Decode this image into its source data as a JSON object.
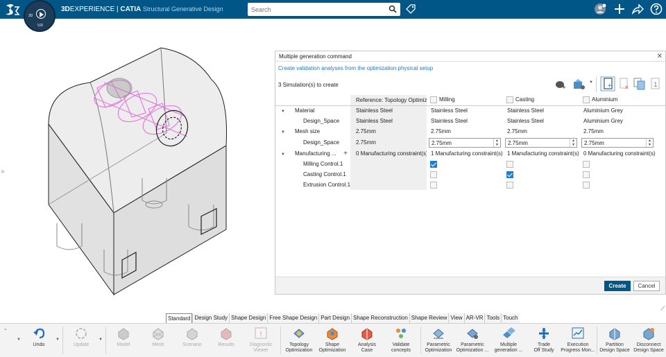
{
  "header": {
    "brand_bold": "3D",
    "brand_rest": "EXPERIENCE | ",
    "product": "CATIA",
    "app": "Structural Generative Design",
    "compass_3d": "3D",
    "compass_version": "V,R",
    "search_placeholder": "Search"
  },
  "dialog": {
    "title": "Multiple generation command",
    "link": "Create validation analyses from the optimization physical setup",
    "count": "3 Simulation(s) to create",
    "columns": {
      "reference": "Reference: Topology Optimiza...",
      "c1": "Milling",
      "c2": "Casting",
      "c3": "Aluminium"
    },
    "rows": {
      "material": "Material",
      "design_space": "Design_Space",
      "mesh_size": "Mesh size",
      "manufacturing": "Manufacturing ...",
      "milling": "Milling Control.1",
      "casting": "Casting Control.1",
      "extrusion": "Extrusion Control.1"
    },
    "values": {
      "ref_material": "Stainless Steel",
      "ref_ds": "Stainless Steel",
      "ref_mesh": "2.75mm",
      "ref_ds_mesh": "2.75mm",
      "ref_manuf": "0 Manufacturing constraint(s)",
      "c1_material": "Stainless Steel",
      "c1_ds": "Stainless Steel",
      "c1_mesh": "2.75mm",
      "c1_ds_mesh": "2.75mm",
      "c1_manuf": "1 Manufacturing constraint(s)",
      "c2_material": "Stainless Steel",
      "c2_ds": "Stainless Steel",
      "c2_mesh": "2.75mm",
      "c2_ds_mesh": "2.75mm",
      "c2_manuf": "1 Manufacturing constraint(s)",
      "c3_material": "Aluminium Grey",
      "c3_ds": "Aluminium Grey",
      "c3_mesh": "2.75mm",
      "c3_ds_mesh": "2.75mm",
      "c3_manuf": "0 Manufacturing constraint(s)"
    },
    "create": "Create",
    "cancel": "Cancel"
  },
  "tabs": [
    "Standard",
    "Design Study",
    "Shape Design",
    "Free Shape Design",
    "Part Design",
    "Shape Reconstruction",
    "Shape Review",
    "View",
    "AR-VR",
    "Tools",
    "Touch"
  ],
  "tools": {
    "undo": "Undo",
    "update": "Update",
    "model": "Model",
    "mesh": "Mesh",
    "scenario": "Scenario",
    "results": "Results",
    "diag1": "Diagnostic",
    "diag2": "Viewer",
    "topo1": "Topology",
    "topo2": "Optimization",
    "shape1": "Shape",
    "shape2": "Optimization",
    "analysis1": "Analysis",
    "analysis2": "Case",
    "validate1": "Validate",
    "validate2": "concepts",
    "param1": "Parametric",
    "param2": "Optimization",
    "paramo1": "Parametric",
    "paramo2": "Optimization ...",
    "multi1": "Multiple",
    "multi2": "generation ...",
    "trade1": "Trade",
    "trade2": "Off Study",
    "exec1": "Execution",
    "exec2": "Progress Mon...",
    "part1": "Partition",
    "part2": "Design Space",
    "disc1": "Disconnect",
    "disc2": "Design Space"
  },
  "colors": {
    "topbar": "#005686",
    "accent": "#1f7fd3",
    "magenta_mesh": "#e87ae0"
  }
}
